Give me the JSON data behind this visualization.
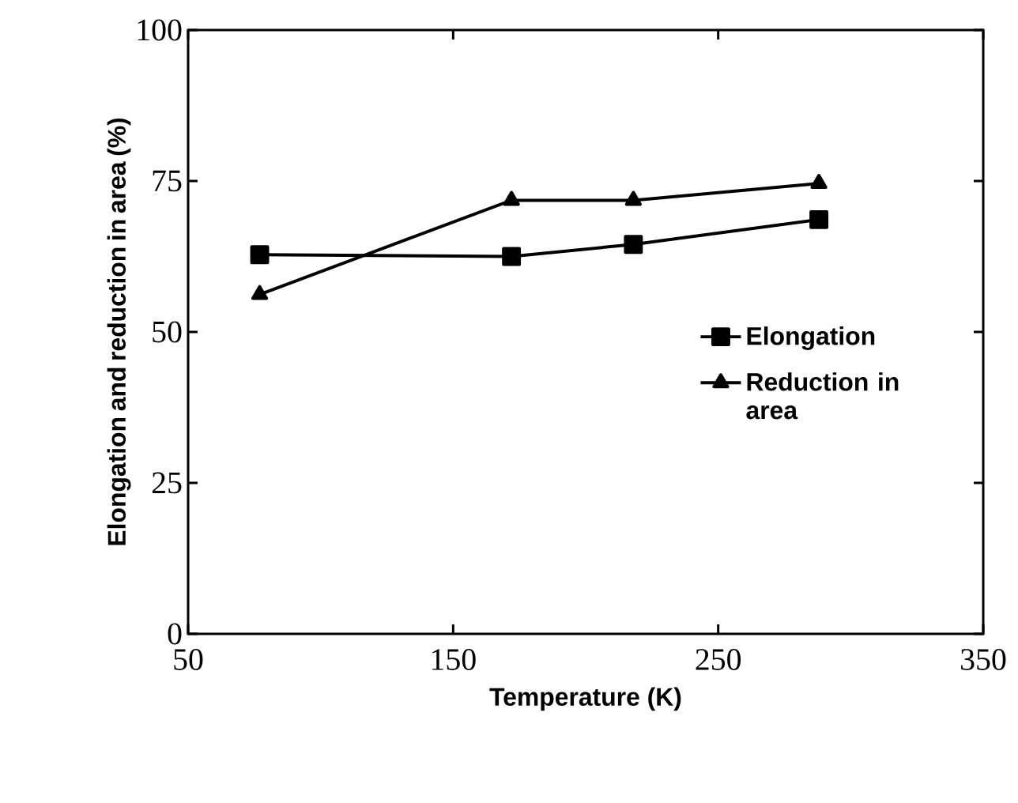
{
  "chart_data": {
    "type": "line",
    "xlabel": "Temperature (K)",
    "ylabel": "Elongation and reduction in area (%)",
    "x": [
      77,
      172,
      218,
      288
    ],
    "series": [
      {
        "name": "Elongation",
        "color": "#000000",
        "marker": "square",
        "values": [
          62.8,
          62.5,
          64.5,
          68.6
        ]
      },
      {
        "name": "Reduction in area",
        "color": "#000000",
        "marker": "triangle",
        "values": [
          56.2,
          71.8,
          71.8,
          74.6
        ]
      }
    ],
    "xlim": [
      50,
      350
    ],
    "xticks": [
      50,
      150,
      250,
      350
    ],
    "ylim": [
      0,
      100
    ],
    "yticks": [
      0,
      25,
      50,
      75,
      100
    ],
    "grid": false,
    "legend": "right",
    "line_style": "solid"
  }
}
